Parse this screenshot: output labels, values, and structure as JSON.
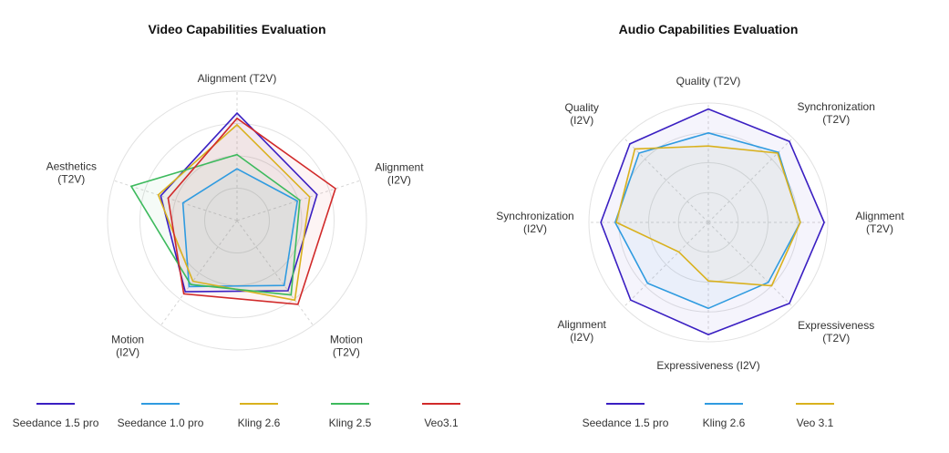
{
  "chart_data": [
    {
      "type": "radar",
      "title": "Video Capabilities Evaluation",
      "axes": [
        [
          "Alignment (T2V)"
        ],
        [
          "Alignment",
          "(I2V)"
        ],
        [
          "Motion",
          "(T2V)"
        ],
        [
          "Motion",
          "(I2V)"
        ],
        [
          "Aesthetics",
          "(T2V)"
        ]
      ],
      "rlim": [
        0,
        100
      ],
      "grid_levels": [
        25,
        50,
        75,
        100
      ],
      "series": [
        {
          "name": "Seedance 1.5 pro",
          "color": "#3a1fc2",
          "values": [
            83,
            65,
            67,
            68,
            62
          ]
        },
        {
          "name": "Seedance 1.0 pro",
          "color": "#2f9be0",
          "values": [
            40,
            49,
            62,
            63,
            44
          ]
        },
        {
          "name": "Kling 2.6",
          "color": "#d9b11e",
          "values": [
            74,
            59,
            76,
            58,
            64
          ]
        },
        {
          "name": "Kling 2.5",
          "color": "#3dba5d",
          "values": [
            51,
            51,
            71,
            61,
            86
          ]
        },
        {
          "name": "Veo3.1",
          "color": "#d12a2a",
          "values": [
            79,
            80,
            80,
            70,
            56
          ]
        }
      ],
      "legend_position": "bottom"
    },
    {
      "type": "radar",
      "title": "Audio Capabilities Evaluation",
      "axes": [
        [
          "Quality (T2V)"
        ],
        [
          "Synchronization",
          "(T2V)"
        ],
        [
          "Alignment",
          "(T2V)"
        ],
        [
          "Expressiveness",
          "(T2V)"
        ],
        [
          "Expressiveness (I2V)"
        ],
        [
          "Alignment",
          "(I2V)"
        ],
        [
          "Synchronization",
          "(I2V)"
        ],
        [
          "Quality",
          "(I2V)"
        ]
      ],
      "rlim": [
        0,
        100
      ],
      "grid_levels": [
        25,
        50,
        75,
        100
      ],
      "series": [
        {
          "name": "Seedance 1.5 pro",
          "color": "#3a1fc2",
          "values": [
            95,
            96,
            97,
            96,
            94,
            92,
            90,
            93
          ]
        },
        {
          "name": "Kling 2.6",
          "color": "#2f9be0",
          "values": [
            75,
            83,
            77,
            71,
            72,
            72,
            78,
            82
          ]
        },
        {
          "name": "Veo 3.1",
          "color": "#d9b11e",
          "values": [
            64,
            82,
            77,
            75,
            49,
            35,
            77,
            87
          ]
        }
      ],
      "legend_position": "bottom"
    }
  ]
}
